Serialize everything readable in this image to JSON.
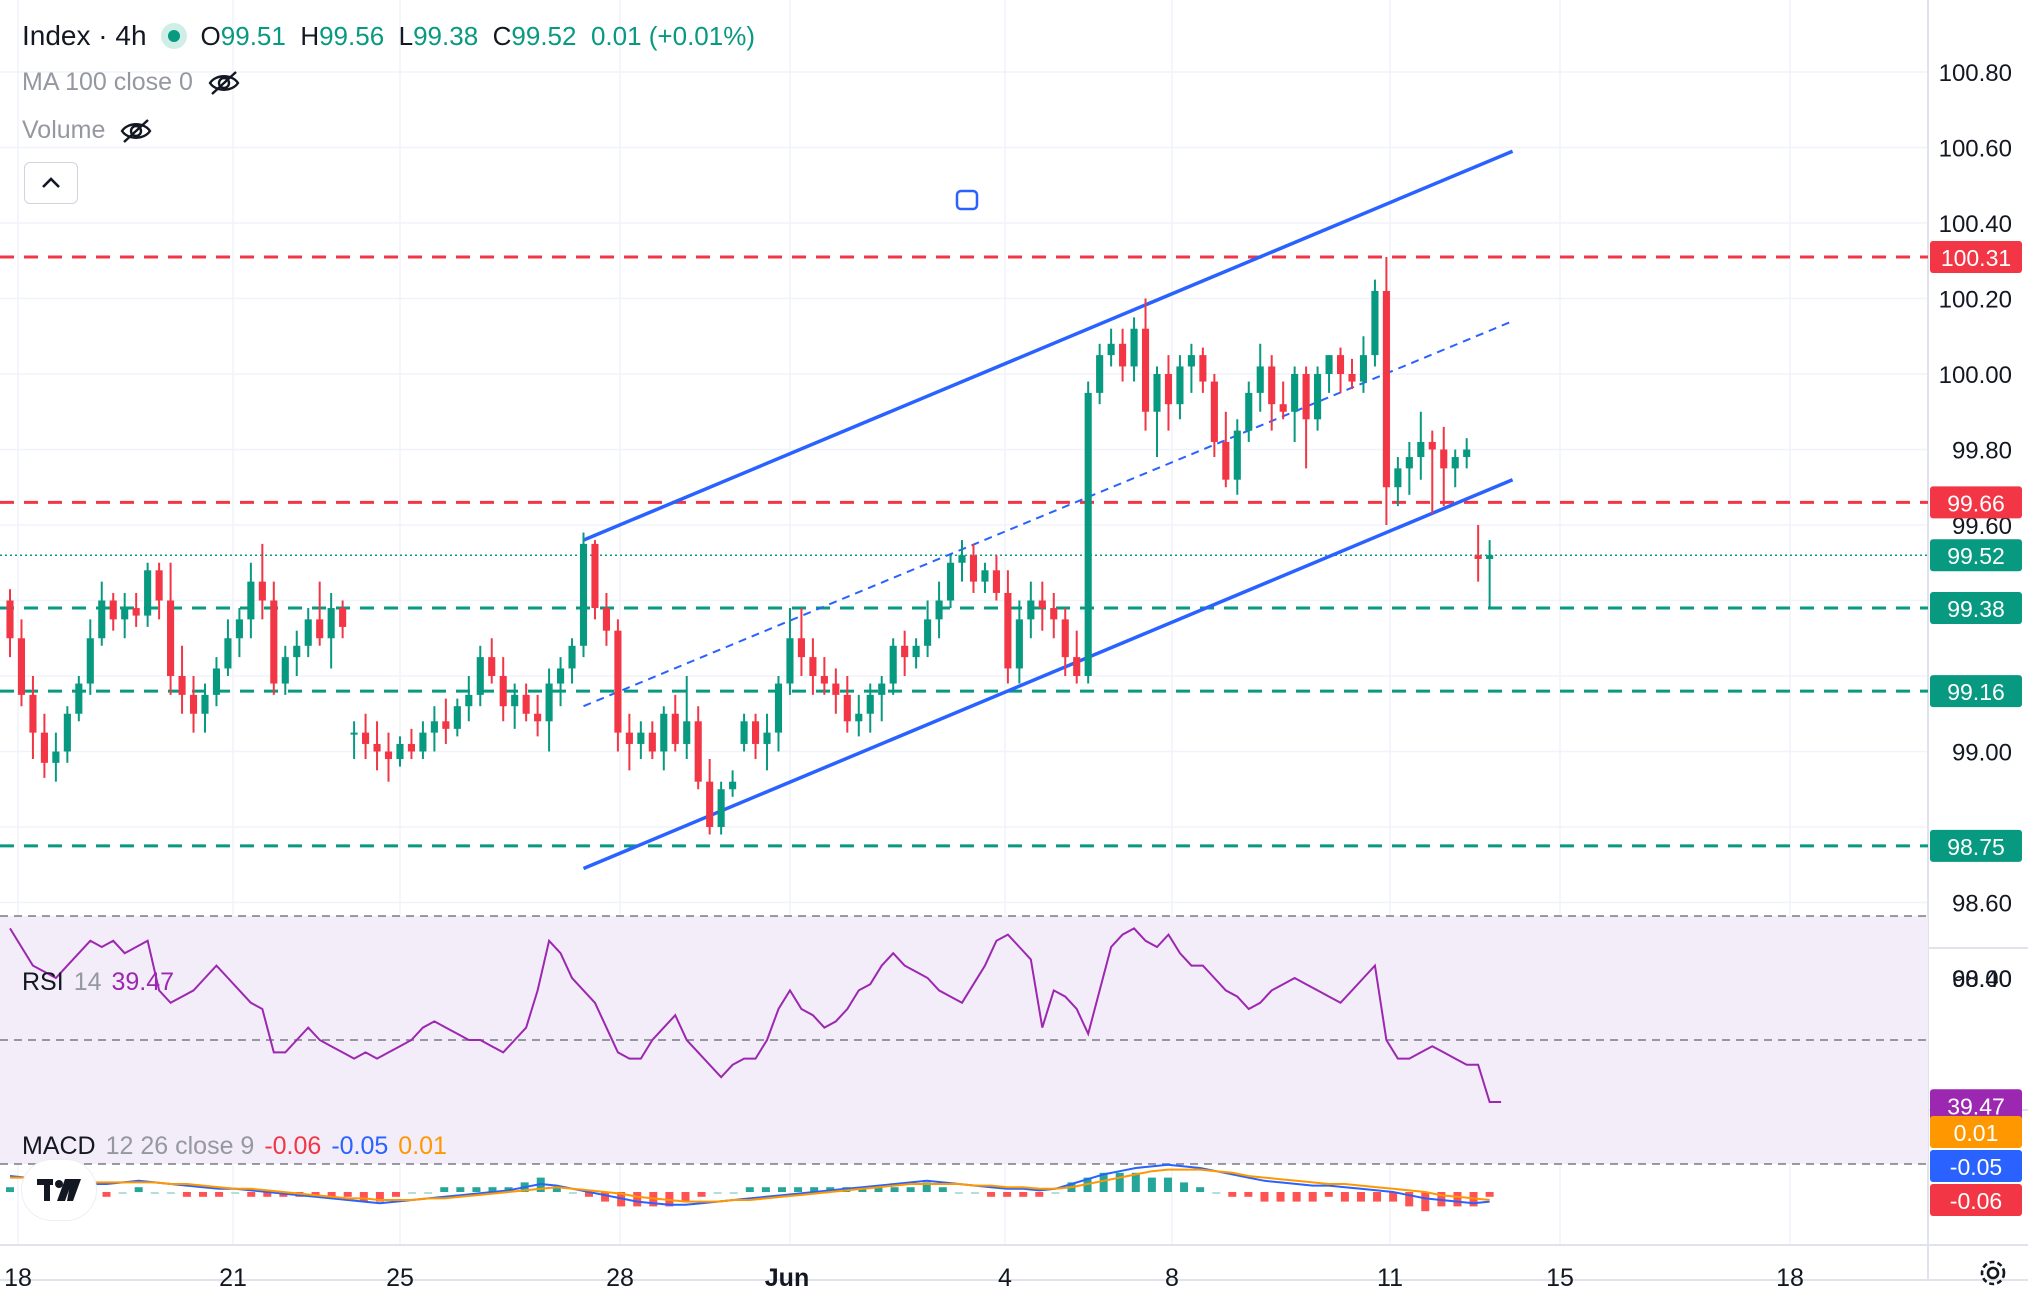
{
  "symbol": {
    "name": "Index",
    "interval": "4h"
  },
  "ohlc": {
    "o_label": "O",
    "o": "99.51",
    "h_label": "H",
    "h": "99.56",
    "l_label": "L",
    "l": "99.38",
    "c_label": "C",
    "c": "99.52",
    "change": "0.01 (+0.01%)"
  },
  "indicators": {
    "ma": {
      "label": "MA 100 close 0"
    },
    "volume": {
      "label": "Volume"
    },
    "rsi": {
      "name": "RSI",
      "params": "14",
      "value": "39.47"
    },
    "macd": {
      "name": "MACD",
      "params": "12 26 close 9",
      "v1": "-0.06",
      "v2": "-0.05",
      "v3": "0.01"
    }
  },
  "colors": {
    "up": "#089981",
    "down": "#f23645",
    "channel": "#2962ff",
    "rsi": "#9c27b0",
    "macd": "#2962ff",
    "signal": "#ff9800"
  },
  "chart_data": [
    {
      "type": "candlestick",
      "y_axis_ticks": [
        "100.80",
        "100.60",
        "100.40",
        "100.20",
        "100.00",
        "99.80",
        "99.60",
        "99.00",
        "98.60",
        "98.40"
      ],
      "ylim": [
        98.3,
        100.8
      ],
      "x_axis_ticks": [
        "18",
        "21",
        "25",
        "28",
        "Jun",
        "4",
        "8",
        "11",
        "15",
        "18"
      ],
      "candles": [
        [
          99.4,
          99.43,
          99.25,
          99.3
        ],
        [
          99.3,
          99.35,
          99.12,
          99.15
        ],
        [
          99.15,
          99.2,
          98.98,
          99.05
        ],
        [
          99.05,
          99.1,
          98.93,
          98.97
        ],
        [
          98.97,
          99.05,
          98.92,
          99.0
        ],
        [
          99.0,
          99.12,
          98.97,
          99.1
        ],
        [
          99.1,
          99.2,
          99.08,
          99.18
        ],
        [
          99.18,
          99.35,
          99.15,
          99.3
        ],
        [
          99.3,
          99.45,
          99.28,
          99.4
        ],
        [
          99.4,
          99.42,
          99.32,
          99.35
        ],
        [
          99.35,
          99.42,
          99.3,
          99.38
        ],
        [
          99.38,
          99.42,
          99.33,
          99.36
        ],
        [
          99.36,
          99.5,
          99.33,
          99.48
        ],
        [
          99.48,
          99.5,
          99.35,
          99.4
        ],
        [
          99.4,
          99.5,
          99.15,
          99.2
        ],
        [
          99.2,
          99.28,
          99.1,
          99.15
        ],
        [
          99.15,
          99.2,
          99.05,
          99.1
        ],
        [
          99.1,
          99.18,
          99.05,
          99.15
        ],
        [
          99.15,
          99.25,
          99.12,
          99.22
        ],
        [
          99.22,
          99.35,
          99.2,
          99.3
        ],
        [
          99.3,
          99.38,
          99.25,
          99.35
        ],
        [
          99.35,
          99.5,
          99.3,
          99.45
        ],
        [
          99.45,
          99.55,
          99.35,
          99.4
        ],
        [
          99.4,
          99.45,
          99.15,
          99.18
        ],
        [
          99.18,
          99.28,
          99.15,
          99.25
        ],
        [
          99.25,
          99.32,
          99.2,
          99.28
        ],
        [
          99.28,
          99.38,
          99.25,
          99.35
        ],
        [
          99.35,
          99.45,
          99.28,
          99.3
        ],
        [
          99.3,
          99.42,
          99.22,
          99.38
        ],
        [
          99.38,
          99.4,
          99.3,
          99.33
        ],
        [
          99.05,
          99.08,
          98.98,
          99.05
        ],
        [
          99.05,
          99.1,
          98.98,
          99.02
        ],
        [
          99.02,
          99.08,
          98.95,
          99.0
        ],
        [
          99.0,
          99.05,
          98.92,
          98.98
        ],
        [
          98.98,
          99.04,
          98.96,
          99.02
        ],
        [
          99.02,
          99.06,
          98.98,
          99.0
        ],
        [
          99.0,
          99.08,
          98.98,
          99.05
        ],
        [
          99.05,
          99.12,
          99.0,
          99.08
        ],
        [
          99.08,
          99.14,
          99.02,
          99.06
        ],
        [
          99.06,
          99.14,
          99.04,
          99.12
        ],
        [
          99.12,
          99.2,
          99.08,
          99.15
        ],
        [
          99.15,
          99.28,
          99.12,
          99.25
        ],
        [
          99.25,
          99.3,
          99.18,
          99.2
        ],
        [
          99.2,
          99.25,
          99.08,
          99.12
        ],
        [
          99.12,
          99.18,
          99.06,
          99.15
        ],
        [
          99.15,
          99.18,
          99.08,
          99.1
        ],
        [
          99.1,
          99.15,
          99.04,
          99.08
        ],
        [
          99.08,
          99.22,
          99.0,
          99.18
        ],
        [
          99.18,
          99.25,
          99.12,
          99.22
        ],
        [
          99.22,
          99.3,
          99.18,
          99.28
        ],
        [
          99.28,
          99.58,
          99.25,
          99.55
        ],
        [
          99.55,
          99.56,
          99.35,
          99.38
        ],
        [
          99.38,
          99.42,
          99.28,
          99.32
        ],
        [
          99.32,
          99.35,
          99.0,
          99.05
        ],
        [
          99.05,
          99.1,
          98.95,
          99.02
        ],
        [
          99.02,
          99.08,
          98.98,
          99.05
        ],
        [
          99.05,
          99.08,
          98.98,
          99.0
        ],
        [
          99.0,
          99.12,
          98.95,
          99.1
        ],
        [
          99.1,
          99.15,
          99.0,
          99.02
        ],
        [
          99.02,
          99.2,
          98.98,
          99.08
        ],
        [
          99.08,
          99.12,
          98.9,
          98.92
        ],
        [
          98.92,
          98.98,
          98.78,
          98.8
        ],
        [
          98.8,
          98.92,
          98.78,
          98.9
        ],
        [
          98.9,
          98.95,
          98.88,
          98.92
        ],
        [
          99.02,
          99.1,
          99.0,
          99.08
        ],
        [
          99.08,
          99.1,
          98.98,
          99.02
        ],
        [
          99.02,
          99.1,
          98.95,
          99.05
        ],
        [
          99.05,
          99.2,
          99.0,
          99.18
        ],
        [
          99.18,
          99.38,
          99.15,
          99.3
        ],
        [
          99.3,
          99.38,
          99.2,
          99.25
        ],
        [
          99.25,
          99.3,
          99.15,
          99.2
        ],
        [
          99.2,
          99.25,
          99.15,
          99.18
        ],
        [
          99.18,
          99.22,
          99.1,
          99.15
        ],
        [
          99.15,
          99.2,
          99.05,
          99.08
        ],
        [
          99.08,
          99.15,
          99.04,
          99.1
        ],
        [
          99.1,
          99.18,
          99.05,
          99.15
        ],
        [
          99.15,
          99.2,
          99.08,
          99.18
        ],
        [
          99.18,
          99.3,
          99.15,
          99.28
        ],
        [
          99.28,
          99.32,
          99.2,
          99.25
        ],
        [
          99.25,
          99.3,
          99.22,
          99.28
        ],
        [
          99.28,
          99.4,
          99.25,
          99.35
        ],
        [
          99.35,
          99.45,
          99.3,
          99.4
        ],
        [
          99.4,
          99.52,
          99.38,
          99.5
        ],
        [
          99.5,
          99.56,
          99.45,
          99.52
        ],
        [
          99.52,
          99.55,
          99.42,
          99.45
        ],
        [
          99.45,
          99.5,
          99.42,
          99.48
        ],
        [
          99.48,
          99.52,
          99.4,
          99.42
        ],
        [
          99.42,
          99.48,
          99.18,
          99.22
        ],
        [
          99.22,
          99.4,
          99.18,
          99.35
        ],
        [
          99.35,
          99.45,
          99.3,
          99.4
        ],
        [
          99.4,
          99.45,
          99.32,
          99.38
        ],
        [
          99.38,
          99.42,
          99.3,
          99.35
        ],
        [
          99.35,
          99.38,
          99.2,
          99.25
        ],
        [
          99.25,
          99.32,
          99.18,
          99.2
        ],
        [
          99.2,
          99.98,
          99.18,
          99.95
        ],
        [
          99.95,
          100.08,
          99.92,
          100.05
        ],
        [
          100.05,
          100.12,
          100.02,
          100.08
        ],
        [
          100.08,
          100.12,
          99.98,
          100.02
        ],
        [
          100.02,
          100.15,
          99.98,
          100.12
        ],
        [
          100.12,
          100.2,
          99.85,
          99.9
        ],
        [
          99.9,
          100.02,
          99.78,
          100.0
        ],
        [
          100.0,
          100.05,
          99.85,
          99.92
        ],
        [
          99.92,
          100.05,
          99.88,
          100.02
        ],
        [
          100.02,
          100.08,
          99.95,
          100.05
        ],
        [
          100.05,
          100.07,
          99.95,
          99.98
        ],
        [
          99.98,
          100.0,
          99.78,
          99.82
        ],
        [
          99.82,
          99.9,
          99.7,
          99.72
        ],
        [
          99.72,
          99.88,
          99.68,
          99.85
        ],
        [
          99.85,
          99.98,
          99.82,
          99.95
        ],
        [
          99.95,
          100.08,
          99.9,
          100.02
        ],
        [
          100.02,
          100.05,
          99.85,
          99.92
        ],
        [
          99.92,
          99.98,
          99.88,
          99.9
        ],
        [
          99.9,
          100.02,
          99.82,
          100.0
        ],
        [
          100.0,
          100.02,
          99.75,
          99.88
        ],
        [
          99.88,
          100.02,
          99.85,
          100.0
        ],
        [
          100.0,
          100.05,
          99.95,
          100.05
        ],
        [
          100.05,
          100.07,
          99.95,
          100.0
        ],
        [
          100.0,
          100.04,
          99.96,
          99.98
        ],
        [
          99.98,
          100.1,
          99.95,
          100.05
        ],
        [
          100.05,
          100.25,
          100.02,
          100.22
        ],
        [
          100.22,
          100.31,
          99.6,
          99.7
        ],
        [
          99.7,
          99.78,
          99.65,
          99.75
        ],
        [
          99.75,
          99.82,
          99.68,
          99.78
        ],
        [
          99.78,
          99.9,
          99.72,
          99.82
        ],
        [
          99.82,
          99.85,
          99.63,
          99.8
        ],
        [
          99.8,
          99.86,
          99.65,
          99.75
        ],
        [
          99.75,
          99.8,
          99.7,
          99.78
        ],
        [
          99.78,
          99.83,
          99.75,
          99.8
        ],
        [
          99.52,
          99.6,
          99.45,
          99.51
        ],
        [
          99.51,
          99.56,
          99.38,
          99.52
        ]
      ],
      "horizontal_levels": [
        {
          "value": 100.31,
          "label": "100.31",
          "color": "#f23645"
        },
        {
          "value": 99.66,
          "label": "99.66",
          "color": "#f23645"
        },
        {
          "value": 99.52,
          "label": "99.52",
          "color": "#089981"
        },
        {
          "value": 99.38,
          "label": "99.38",
          "color": "#089981"
        },
        {
          "value": 99.16,
          "label": "99.16",
          "color": "#089981"
        },
        {
          "value": 98.75,
          "label": "98.75",
          "color": "#089981"
        }
      ],
      "channel": {
        "upper": [
          [
            50,
            99.56
          ],
          [
            131,
            100.59
          ]
        ],
        "lower": [
          [
            50,
            98.69
          ],
          [
            131,
            99.72
          ]
        ],
        "mid": [
          [
            50,
            99.12
          ],
          [
            131,
            100.14
          ]
        ]
      }
    },
    {
      "type": "line",
      "name": "RSI",
      "ylim": [
        20,
        80
      ],
      "y_axis_ticks": [
        "60.00"
      ],
      "levels": [
        70,
        50,
        30
      ],
      "values": [
        68,
        65,
        62,
        61,
        60,
        62,
        64,
        66,
        65,
        66,
        64,
        65,
        66,
        58,
        56,
        57,
        58,
        60,
        62,
        60,
        58,
        56,
        55,
        48,
        48,
        50,
        52,
        50,
        49,
        48,
        47,
        48,
        47,
        48,
        49,
        50,
        52,
        53,
        52,
        51,
        50,
        50,
        49,
        48,
        50,
        52,
        58,
        66,
        64,
        60,
        58,
        56,
        52,
        48,
        47,
        47,
        50,
        52,
        54,
        50,
        48,
        46,
        44,
        46,
        47,
        47,
        50,
        55,
        58,
        55,
        54,
        52,
        53,
        55,
        58,
        59,
        62,
        64,
        62,
        61,
        60,
        58,
        57,
        56,
        59,
        62,
        66,
        67,
        65,
        63,
        52,
        58,
        57,
        55,
        51,
        58,
        65,
        67,
        68,
        66,
        65,
        67,
        64,
        62,
        62,
        60,
        58,
        57,
        55,
        56,
        58,
        59,
        60,
        59,
        58,
        57,
        56,
        58,
        60,
        62,
        50,
        47,
        47,
        48,
        49,
        48,
        47,
        46,
        46,
        40,
        40
      ]
    },
    {
      "type": "line",
      "name": "MACD",
      "ylim": [
        -0.3,
        0.3
      ],
      "series": [
        {
          "values": [
            0.1,
            0.09,
            0.08,
            0.07,
            0.06,
            0.05,
            0.05,
            0.06,
            0.07,
            0.06,
            0.05,
            0.04,
            0.03,
            0.02,
            0.02,
            0.01,
            0.0,
            -0.01,
            -0.02,
            -0.03,
            -0.04,
            -0.05,
            -0.06,
            -0.07,
            -0.06,
            -0.05,
            -0.04,
            -0.03,
            -0.02,
            -0.01,
            0.0,
            0.01,
            0.03,
            0.05,
            0.04,
            0.02,
            0.0,
            -0.02,
            -0.04,
            -0.06,
            -0.07,
            -0.08,
            -0.08,
            -0.07,
            -0.06,
            -0.05,
            -0.04,
            -0.03,
            -0.02,
            -0.01,
            0.0,
            0.01,
            0.02,
            0.03,
            0.04,
            0.05,
            0.06,
            0.07,
            0.06,
            0.05,
            0.04,
            0.03,
            0.02,
            0.02,
            0.01,
            0.02,
            0.05,
            0.08,
            0.11,
            0.13,
            0.15,
            0.16,
            0.17,
            0.16,
            0.15,
            0.13,
            0.11,
            0.09,
            0.07,
            0.06,
            0.05,
            0.04,
            0.04,
            0.03,
            0.02,
            0.01,
            0.0,
            -0.02,
            -0.04,
            -0.05,
            -0.06,
            -0.07,
            -0.06
          ]
        },
        {
          "values": [
            0.09,
            0.09,
            0.08,
            0.08,
            0.07,
            0.06,
            0.06,
            0.06,
            0.06,
            0.06,
            0.05,
            0.05,
            0.04,
            0.03,
            0.02,
            0.02,
            0.01,
            0.0,
            -0.01,
            -0.02,
            -0.03,
            -0.04,
            -0.04,
            -0.05,
            -0.05,
            -0.05,
            -0.04,
            -0.04,
            -0.03,
            -0.02,
            -0.01,
            0.0,
            0.01,
            0.02,
            0.03,
            0.02,
            0.01,
            0.0,
            -0.01,
            -0.03,
            -0.04,
            -0.05,
            -0.06,
            -0.06,
            -0.06,
            -0.05,
            -0.05,
            -0.04,
            -0.03,
            -0.02,
            -0.01,
            0.0,
            0.01,
            0.02,
            0.03,
            0.04,
            0.05,
            0.05,
            0.05,
            0.05,
            0.04,
            0.04,
            0.03,
            0.03,
            0.02,
            0.02,
            0.03,
            0.05,
            0.07,
            0.09,
            0.11,
            0.13,
            0.14,
            0.14,
            0.14,
            0.13,
            0.12,
            0.1,
            0.09,
            0.08,
            0.07,
            0.06,
            0.05,
            0.05,
            0.04,
            0.03,
            0.02,
            0.01,
            0.0,
            -0.02,
            -0.03,
            -0.04,
            -0.05
          ]
        }
      ]
    }
  ]
}
